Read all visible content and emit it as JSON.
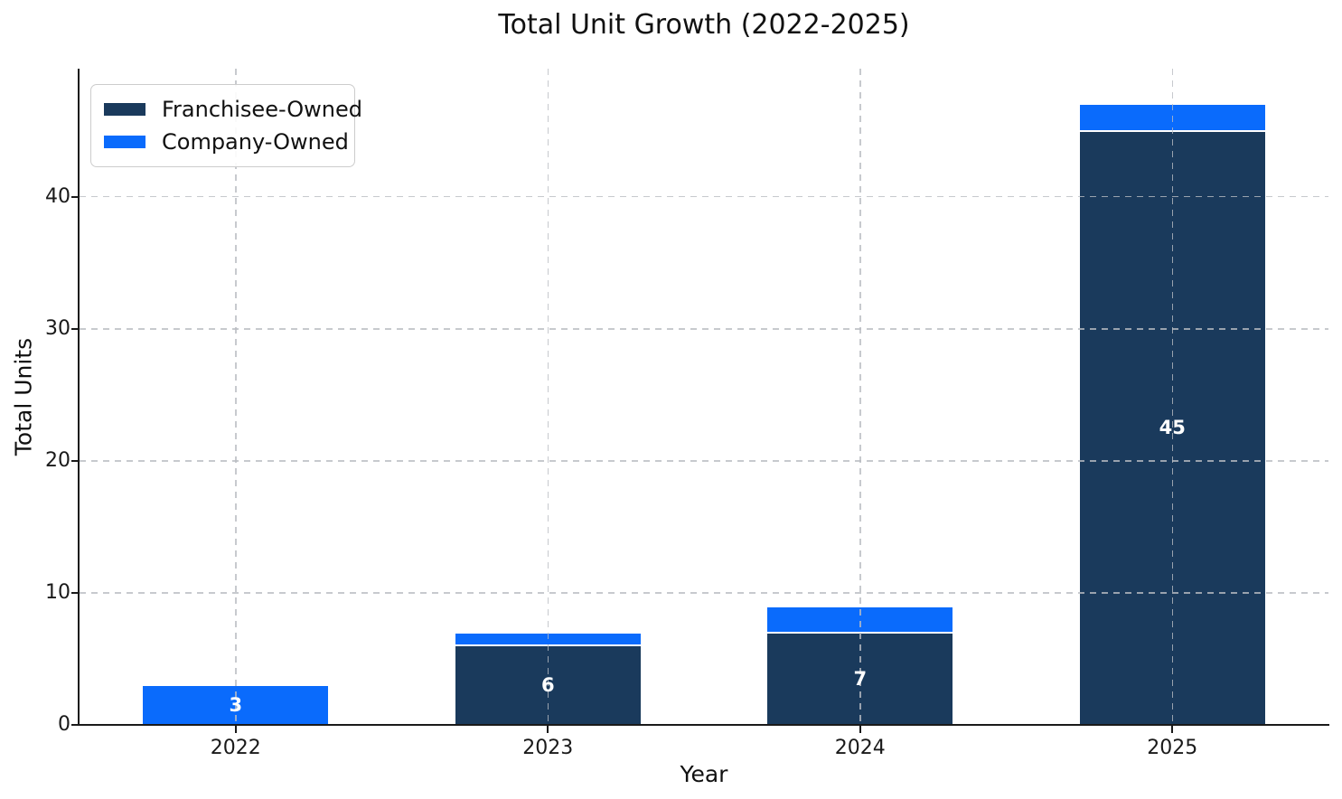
{
  "chart_data": {
    "type": "bar",
    "stacked": true,
    "title": "Total Unit Growth (2022-2025)",
    "xlabel": "Year",
    "ylabel": "Total Units",
    "categories": [
      "2022",
      "2023",
      "2024",
      "2025"
    ],
    "series": [
      {
        "name": "Franchisee-Owned",
        "color": "#1a3a5c",
        "values": [
          0,
          6,
          7,
          45
        ]
      },
      {
        "name": "Company-Owned",
        "color": "#0a6bfc",
        "values": [
          3,
          1,
          2,
          2
        ]
      }
    ],
    "bar_value_labels": [
      {
        "category": "2022",
        "series": "Company-Owned",
        "text": "3"
      },
      {
        "category": "2023",
        "series": "Franchisee-Owned",
        "text": "6"
      },
      {
        "category": "2024",
        "series": "Franchisee-Owned",
        "text": "7"
      },
      {
        "category": "2025",
        "series": "Franchisee-Owned",
        "text": "45"
      }
    ],
    "bar_label_color": "#ffffff",
    "yticks": [
      0,
      10,
      20,
      30,
      40
    ],
    "ylim": [
      0,
      49.7
    ],
    "grid": {
      "linestyle": "dashed",
      "color": "#babcc2",
      "axes": "both",
      "drawn_over_bars": true
    },
    "legend": {
      "position": "upper left",
      "entries": [
        "Franchisee-Owned",
        "Company-Owned"
      ]
    }
  }
}
